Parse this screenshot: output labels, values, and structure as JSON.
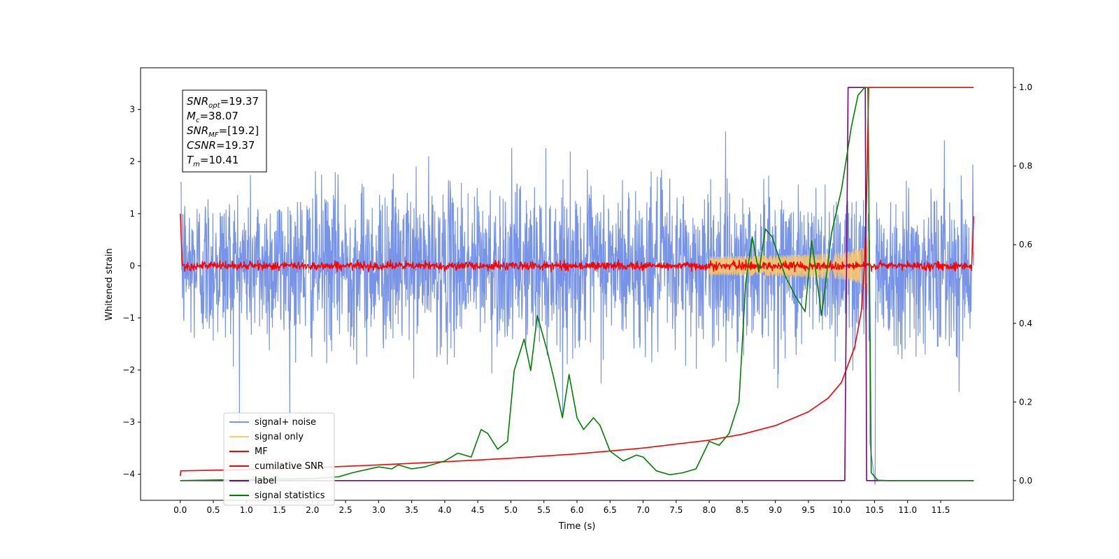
{
  "chart_data": {
    "type": "line",
    "xlabel": "Time (s)",
    "ylabel": "Whitened strain",
    "xlim": [
      -0.6,
      12.6
    ],
    "ylim": [
      -4.5,
      3.8
    ],
    "y2lim": [
      -0.05,
      1.05
    ],
    "x_ticks": [
      "0.0",
      "0.5",
      "1.0",
      "1.5",
      "2.0",
      "2.5",
      "3.0",
      "3.5",
      "4.0",
      "4.5",
      "5.0",
      "5.5",
      "6.0",
      "6.5",
      "7.0",
      "7.5",
      "8.0",
      "8.5",
      "9.0",
      "9.5",
      "10.0",
      "10.5",
      "11.0",
      "11.5"
    ],
    "y_ticks": [
      "−4",
      "−3",
      "−2",
      "−1",
      "0",
      "1",
      "2",
      "3"
    ],
    "y2_ticks": [
      "0.0",
      "0.2",
      "0.4",
      "0.6",
      "0.8",
      "1.0"
    ],
    "grid": false,
    "legend_position": "lower-left",
    "annotation": [
      {
        "symbol": "SNR",
        "sub": "opt",
        "value": "=19.37"
      },
      {
        "symbol": "M",
        "sub": "c",
        "value": "=38.07"
      },
      {
        "symbol": "SNR",
        "sub": "MF",
        "value": "=[19.2]"
      },
      {
        "symbol": "CSNR",
        "sub": "",
        "value": "=19.37"
      },
      {
        "symbol": "T",
        "sub": "m",
        "value": "=10.41"
      }
    ],
    "series": [
      {
        "name": "signal+ noise",
        "color": "#7894e8",
        "axis": "left",
        "noise_sigma": 0.75,
        "peak_max": 2.75,
        "peak_min": -2.98,
        "t_range": [
          0,
          12
        ],
        "drop_after": 10.41
      },
      {
        "name": "signal only",
        "color": "#ffc966",
        "axis": "left",
        "chirp_end": 10.41,
        "chirp_peak_amplitude": 1.1
      },
      {
        "name": "MF",
        "color": "#ff0000",
        "axis": "left",
        "noise_sigma": 0.04,
        "t_range": [
          0,
          12
        ]
      },
      {
        "name": "cumilative SNR",
        "color": "#ff0000",
        "axis": "right",
        "x": [
          0,
          0.01,
          1.0,
          2.0,
          3.0,
          4.0,
          5.0,
          6.0,
          7.0,
          8.0,
          8.5,
          9.0,
          9.5,
          9.8,
          10.0,
          10.2,
          10.3,
          10.35,
          10.38,
          10.4,
          10.41,
          10.5,
          11.0,
          11.5,
          12.0
        ],
        "values": [
          0.012,
          0.025,
          0.028,
          0.033,
          0.04,
          0.048,
          0.057,
          0.068,
          0.083,
          0.103,
          0.118,
          0.14,
          0.175,
          0.21,
          0.25,
          0.34,
          0.43,
          0.55,
          0.72,
          0.9,
          1.0,
          1.0,
          1.0,
          1.0,
          1.0
        ]
      },
      {
        "name": "label",
        "color": "#800080",
        "axis": "right",
        "x": [
          0,
          10.05,
          10.1,
          10.36,
          10.38,
          10.41,
          12.0
        ],
        "values": [
          0.0,
          0.0,
          1.0,
          1.0,
          0.0,
          0.0,
          0.0
        ]
      },
      {
        "name": "signal statistics",
        "color": "#008000",
        "axis": "right",
        "x": [
          0,
          1.0,
          2.0,
          2.4,
          2.6,
          3.0,
          3.2,
          3.3,
          3.5,
          3.7,
          4.0,
          4.2,
          4.4,
          4.55,
          4.65,
          4.8,
          4.95,
          5.05,
          5.2,
          5.3,
          5.4,
          5.55,
          5.65,
          5.78,
          5.88,
          6.0,
          6.1,
          6.25,
          6.35,
          6.5,
          6.7,
          6.9,
          7.0,
          7.2,
          7.4,
          7.6,
          7.8,
          8.0,
          8.15,
          8.3,
          8.45,
          8.55,
          8.65,
          8.75,
          8.85,
          8.95,
          9.05,
          9.15,
          9.3,
          9.45,
          9.55,
          9.7,
          9.85,
          10.0,
          10.15,
          10.25,
          10.35,
          10.4,
          10.45,
          10.55,
          10.7,
          11.0,
          12.0
        ],
        "values": [
          0.0,
          0.003,
          0.005,
          0.01,
          0.02,
          0.035,
          0.03,
          0.04,
          0.03,
          0.035,
          0.05,
          0.07,
          0.06,
          0.13,
          0.12,
          0.08,
          0.1,
          0.28,
          0.36,
          0.28,
          0.42,
          0.33,
          0.26,
          0.16,
          0.27,
          0.16,
          0.13,
          0.16,
          0.14,
          0.075,
          0.05,
          0.065,
          0.06,
          0.025,
          0.015,
          0.02,
          0.03,
          0.1,
          0.09,
          0.12,
          0.2,
          0.5,
          0.62,
          0.53,
          0.64,
          0.62,
          0.57,
          0.52,
          0.47,
          0.43,
          0.61,
          0.42,
          0.63,
          0.74,
          0.9,
          0.98,
          1.0,
          1.0,
          0.02,
          0.001,
          0.0,
          0.0,
          0.0
        ]
      }
    ]
  }
}
